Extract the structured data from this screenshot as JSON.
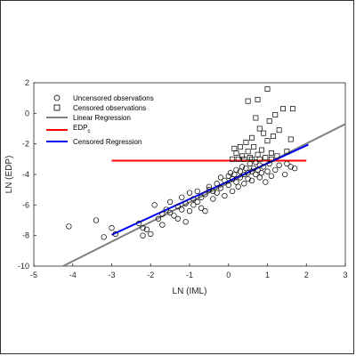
{
  "chart_data": {
    "type": "scatter",
    "title": "",
    "xlabel": "LN (IML)",
    "ylabel": "LN (EDP)",
    "xlim": [
      -5,
      3
    ],
    "ylim": [
      -10,
      2
    ],
    "xticks": [
      -5,
      -4,
      -3,
      -2,
      -1,
      0,
      1,
      2,
      3
    ],
    "yticks": [
      -10,
      -8,
      -6,
      -4,
      -2,
      0,
      2
    ],
    "grid": false,
    "legend_position": "top-left",
    "legend": [
      {
        "key": "uncensored",
        "label": "Uncensored observations",
        "marker": "circle",
        "color": "#000000"
      },
      {
        "key": "censored",
        "label": "Censored observations",
        "marker": "square",
        "color": "#000000"
      },
      {
        "key": "linreg",
        "label": "Linear Regression",
        "line": true,
        "color": "#808080"
      },
      {
        "key": "edpc",
        "label": "EDP",
        "subscript": "c",
        "line": true,
        "color": "#ff0000"
      },
      {
        "key": "cenreg",
        "label": "Censored Regression",
        "line": true,
        "color": "#0000ff"
      }
    ],
    "series": [
      {
        "name": "Uncensored observations",
        "marker": "circle",
        "points": [
          [
            -4.1,
            -7.4
          ],
          [
            -3.4,
            -7.0
          ],
          [
            -3.2,
            -8.1
          ],
          [
            -3.0,
            -7.5
          ],
          [
            -2.9,
            -7.9
          ],
          [
            -2.3,
            -7.2
          ],
          [
            -2.2,
            -7.5
          ],
          [
            -2.2,
            -8.0
          ],
          [
            -2.1,
            -7.6
          ],
          [
            -2.0,
            -7.9
          ],
          [
            -1.9,
            -6.0
          ],
          [
            -1.8,
            -6.9
          ],
          [
            -1.7,
            -6.6
          ],
          [
            -1.7,
            -7.3
          ],
          [
            -1.6,
            -6.3
          ],
          [
            -1.5,
            -5.8
          ],
          [
            -1.5,
            -6.5
          ],
          [
            -1.4,
            -6.7
          ],
          [
            -1.3,
            -6.1
          ],
          [
            -1.3,
            -6.9
          ],
          [
            -1.2,
            -5.5
          ],
          [
            -1.2,
            -6.3
          ],
          [
            -1.1,
            -5.9
          ],
          [
            -1.1,
            -7.1
          ],
          [
            -1.0,
            -5.2
          ],
          [
            -1.0,
            -6.4
          ],
          [
            -0.9,
            -5.6
          ],
          [
            -0.9,
            -6.0
          ],
          [
            -0.8,
            -5.1
          ],
          [
            -0.8,
            -5.8
          ],
          [
            -0.7,
            -5.5
          ],
          [
            -0.7,
            -6.2
          ],
          [
            -0.6,
            -5.3
          ],
          [
            -0.6,
            -6.4
          ],
          [
            -0.5,
            -4.8
          ],
          [
            -0.5,
            -5.0
          ],
          [
            -0.4,
            -5.1
          ],
          [
            -0.4,
            -5.6
          ],
          [
            -0.3,
            -4.6
          ],
          [
            -0.3,
            -5.2
          ],
          [
            -0.2,
            -4.2
          ],
          [
            -0.2,
            -4.9
          ],
          [
            -0.1,
            -4.4
          ],
          [
            -0.1,
            -5.4
          ],
          [
            0.0,
            -4.1
          ],
          [
            0.0,
            -4.7
          ],
          [
            0.05,
            -3.9
          ],
          [
            0.1,
            -4.3
          ],
          [
            0.1,
            -5.1
          ],
          [
            0.15,
            -4.0
          ],
          [
            0.2,
            -3.7
          ],
          [
            0.2,
            -4.5
          ],
          [
            0.25,
            -4.8
          ],
          [
            0.3,
            -3.8
          ],
          [
            0.3,
            -4.2
          ],
          [
            0.35,
            -3.5
          ],
          [
            0.4,
            -4.0
          ],
          [
            0.4,
            -4.6
          ],
          [
            0.45,
            -3.6
          ],
          [
            0.5,
            -3.9
          ],
          [
            0.5,
            -4.3
          ],
          [
            0.55,
            -3.3
          ],
          [
            0.6,
            -3.8
          ],
          [
            0.6,
            -4.4
          ],
          [
            0.65,
            -3.6
          ],
          [
            0.7,
            -3.2
          ],
          [
            0.7,
            -4.0
          ],
          [
            0.75,
            -3.7
          ],
          [
            0.8,
            -3.4
          ],
          [
            0.8,
            -4.2
          ],
          [
            0.85,
            -3.9
          ],
          [
            0.9,
            -3.5
          ],
          [
            0.95,
            -4.5
          ],
          [
            1.0,
            -3.8
          ],
          [
            1.05,
            -3.3
          ],
          [
            1.1,
            -4.1
          ],
          [
            1.2,
            -3.7
          ],
          [
            1.3,
            -3.4
          ],
          [
            1.45,
            -4.0
          ],
          [
            1.5,
            -3.3
          ],
          [
            1.6,
            -3.5
          ],
          [
            1.7,
            -3.6
          ]
        ]
      },
      {
        "name": "Censored observations",
        "marker": "square",
        "points": [
          [
            0.1,
            -3.0
          ],
          [
            0.15,
            -2.3
          ],
          [
            0.2,
            -2.6
          ],
          [
            0.25,
            -3.0
          ],
          [
            0.3,
            -2.2
          ],
          [
            0.35,
            -2.8
          ],
          [
            0.4,
            -3.0
          ],
          [
            0.45,
            -1.9
          ],
          [
            0.5,
            -2.5
          ],
          [
            0.55,
            -2.9
          ],
          [
            0.6,
            -3.0
          ],
          [
            0.6,
            -1.6
          ],
          [
            0.65,
            -2.2
          ],
          [
            0.7,
            -0.3
          ],
          [
            0.75,
            -2.7
          ],
          [
            0.8,
            -3.0
          ],
          [
            0.8,
            -1.0
          ],
          [
            0.85,
            -2.4
          ],
          [
            0.9,
            -1.3
          ],
          [
            0.95,
            -2.9
          ],
          [
            1.0,
            1.6
          ],
          [
            1.0,
            -1.8
          ],
          [
            1.05,
            -0.5
          ],
          [
            1.1,
            -2.6
          ],
          [
            1.15,
            -1.5
          ],
          [
            1.2,
            -0.1
          ],
          [
            1.25,
            -2.8
          ],
          [
            1.3,
            -1.1
          ],
          [
            1.4,
            0.3
          ],
          [
            1.5,
            -2.5
          ],
          [
            1.6,
            -1.7
          ],
          [
            1.65,
            0.3
          ],
          [
            0.5,
            0.8
          ],
          [
            0.75,
            0.9
          ],
          [
            1.1,
            -3.0
          ]
        ]
      },
      {
        "name": "Linear Regression",
        "line": [
          [
            -4.25,
            -10
          ],
          [
            3.0,
            -0.7
          ]
        ],
        "color": "#808080"
      },
      {
        "name": "EDP",
        "line": [
          [
            -3.0,
            -3.1
          ],
          [
            2.0,
            -3.1
          ]
        ],
        "color": "#ff0000"
      },
      {
        "name": "Censored Regression",
        "line": [
          [
            -3.0,
            -7.95
          ],
          [
            2.05,
            -2.05
          ]
        ],
        "color": "#0000ff"
      }
    ]
  }
}
